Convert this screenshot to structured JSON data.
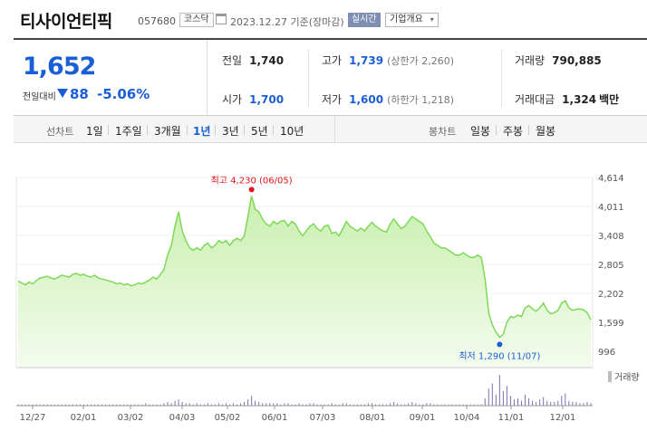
{
  "header": {
    "company_name": "티사이언티픽",
    "code": "057680",
    "market": "코스닥",
    "date_text": "2023.12.27  기준(장마감)",
    "live_badge": "실시간",
    "overview_button": "기업개요",
    "overview_caret": "▾"
  },
  "price": {
    "current": "1,652",
    "change_label": "전일대비",
    "change_value": "88",
    "change_pct": "-5.06%"
  },
  "stats": {
    "prev_close_label": "전일",
    "prev_close_value": "1,740",
    "high_label": "고가",
    "high_value": "1,739",
    "high_limit": "(상한가 2,260)",
    "volume_label": "거래량",
    "volume_value": "790,885",
    "open_label": "시가",
    "open_value": "1,700",
    "low_label": "저가",
    "low_value": "1,600",
    "low_limit": "(하한가 1,218)",
    "trade_value_label": "거래대금",
    "trade_value_value": "1,324",
    "trade_value_unit": "백만"
  },
  "tabs": {
    "line_chart_label": "선차트",
    "line_periods": [
      "1일",
      "1주일",
      "3개월",
      "1년",
      "3년",
      "5년",
      "10년"
    ],
    "active_period": "1년",
    "candle_chart_label": "봉차트",
    "candle_periods": [
      "일봉",
      "주봉",
      "월봉"
    ]
  },
  "colors": {
    "accent_blue": "#1a5ed6",
    "high_red": "#e0161b",
    "line_green": "#7ed957",
    "fill_green": "#e4f7d6",
    "volume_purple": "#7b6fb0"
  },
  "chart_data": {
    "type": "area",
    "ylim": [
      996,
      4614
    ],
    "y_ticks": [
      "4,614",
      "4,011",
      "3,408",
      "2,805",
      "2,202",
      "1,599",
      "996"
    ],
    "x_ticks": [
      "12/27",
      "02/01",
      "03/02",
      "04/03",
      "05/02",
      "06/01",
      "07/03",
      "08/01",
      "09/01",
      "10/04",
      "11/01",
      "12/01"
    ],
    "high_annotation": "최고 4,230 (06/05)",
    "low_annotation": "최저 1,290 (11/07)",
    "volume_label": "거래량",
    "price_series": [
      2460,
      2420,
      2380,
      2440,
      2400,
      2470,
      2520,
      2540,
      2560,
      2520,
      2500,
      2540,
      2580,
      2560,
      2540,
      2600,
      2620,
      2580,
      2600,
      2560,
      2540,
      2580,
      2520,
      2500,
      2480,
      2460,
      2440,
      2400,
      2420,
      2380,
      2400,
      2360,
      2380,
      2420,
      2400,
      2440,
      2480,
      2540,
      2500,
      2600,
      2700,
      3000,
      3200,
      3600,
      3900,
      3500,
      3300,
      3150,
      3100,
      3150,
      3100,
      3200,
      3250,
      3150,
      3200,
      3300,
      3250,
      3300,
      3200,
      3300,
      3350,
      3300,
      3400,
      3800,
      4230,
      3950,
      3900,
      3750,
      3650,
      3600,
      3700,
      3650,
      3700,
      3720,
      3600,
      3700,
      3650,
      3500,
      3400,
      3500,
      3600,
      3650,
      3550,
      3500,
      3600,
      3620,
      3450,
      3480,
      3400,
      3550,
      3700,
      3600,
      3550,
      3500,
      3560,
      3500,
      3600,
      3680,
      3600,
      3550,
      3500,
      3480,
      3650,
      3750,
      3650,
      3550,
      3600,
      3700,
      3800,
      3750,
      3700,
      3650,
      3500,
      3380,
      3250,
      3200,
      3150,
      3150,
      3100,
      3050,
      3000,
      3000,
      3050,
      3000,
      2950,
      2950,
      3000,
      2950,
      2500,
      1800,
      1550,
      1400,
      1290,
      1350,
      1600,
      1720,
      1700,
      1750,
      1720,
      1900,
      1950,
      1880,
      1830,
      1900,
      2000,
      1850,
      1780,
      1800,
      1850,
      2000,
      2050,
      1900,
      1850,
      1870,
      1880,
      1860,
      1800,
      1652
    ],
    "volume_series": [
      1,
      1,
      1,
      1,
      1,
      1,
      1,
      1,
      1,
      1,
      1,
      1,
      1,
      1,
      1,
      1,
      1,
      1,
      1,
      1,
      1,
      1,
      1,
      1,
      1,
      1,
      1,
      1,
      1,
      1,
      1,
      1,
      1,
      1,
      1,
      2,
      1,
      1,
      1,
      1,
      2,
      3,
      2,
      4,
      5,
      3,
      2,
      2,
      1,
      2,
      1,
      1,
      2,
      1,
      1,
      2,
      1,
      2,
      1,
      2,
      1,
      2,
      3,
      5,
      8,
      4,
      3,
      2,
      2,
      2,
      2,
      2,
      1,
      2,
      2,
      1,
      1,
      2,
      1,
      1,
      2,
      2,
      1,
      1,
      1,
      1,
      2,
      1,
      1,
      2,
      2,
      1,
      1,
      1,
      1,
      1,
      2,
      2,
      1,
      1,
      1,
      1,
      2,
      3,
      2,
      1,
      1,
      2,
      3,
      2,
      1,
      1,
      2,
      2,
      1,
      1,
      1,
      1,
      1,
      1,
      1,
      1,
      1,
      1,
      1,
      1,
      1,
      1,
      6,
      14,
      18,
      9,
      25,
      12,
      16,
      8,
      5,
      6,
      4,
      9,
      6,
      4,
      3,
      5,
      7,
      4,
      3,
      3,
      4,
      8,
      10,
      4,
      3,
      3,
      2,
      2,
      3,
      2
    ]
  }
}
